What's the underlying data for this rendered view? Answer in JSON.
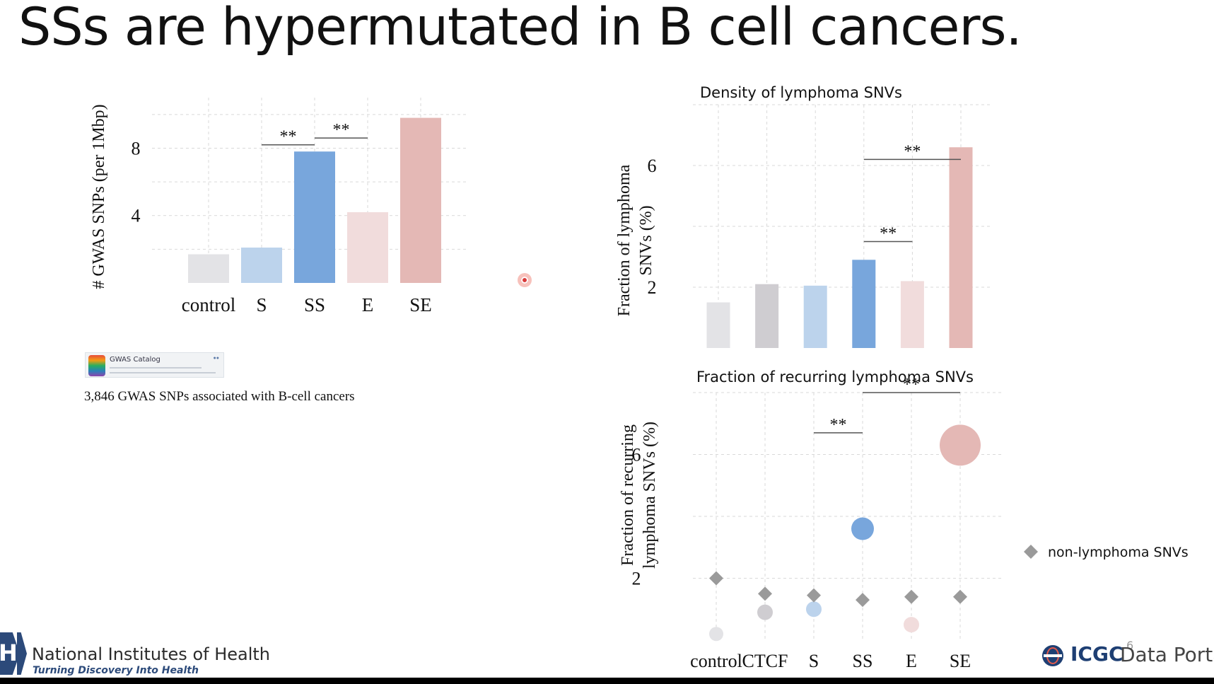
{
  "slide": {
    "title": "SSs are hypermutated in B cell cancers.",
    "caption": "3,846 GWAS SNPs associated with B-cell cancers",
    "gwas_logo_text": "GWAS Catalog",
    "page_number": "6"
  },
  "footer": {
    "nih_name": "National Institutes of Health",
    "nih_tagline": "Turning Discovery Into Health",
    "icgc_brand": "ICGC",
    "icgc_portal": "Data Portal"
  },
  "colors": {
    "control": "#e3e3e6",
    "CTCF": "#cfcdd1",
    "S": "#bcd3ec",
    "SS": "#78a6dc",
    "E": "#f1dcdc",
    "SE": "#e4b8b5",
    "grid": "#d9d9d9",
    "diamond": "#9a9a9a"
  },
  "chart_data": [
    {
      "id": "gwas",
      "type": "bar",
      "title": "",
      "xlabel": "",
      "ylabel": "# GWAS SNPs (per 1Mbp)",
      "categories": [
        "control",
        "S",
        "SS",
        "E",
        "SE"
      ],
      "values": [
        1.7,
        2.1,
        7.8,
        4.2,
        9.8
      ],
      "ylim": [
        0,
        11
      ],
      "yticks": [
        4,
        8
      ],
      "grid": true,
      "significance": [
        {
          "from": "S",
          "to": "SS",
          "label": "**",
          "y": 8.2
        },
        {
          "from": "SS",
          "to": "E",
          "label": "**",
          "y": 8.6
        }
      ]
    },
    {
      "id": "density",
      "type": "bar",
      "title": "Density of lymphoma SNVs",
      "xlabel": "",
      "ylabel": "Fraction of lymphoma SNVs (%)",
      "categories": [
        "control",
        "CTCF",
        "S",
        "SS",
        "E",
        "SE"
      ],
      "values": [
        1.5,
        2.1,
        2.05,
        2.9,
        2.2,
        6.6
      ],
      "ylim": [
        0,
        8
      ],
      "yticks": [
        2,
        6
      ],
      "grid": true,
      "significance": [
        {
          "from": "SS",
          "to": "SE",
          "label": "**",
          "y": 6.2
        },
        {
          "from": "SS",
          "to": "E",
          "label": "**",
          "y": 3.5
        }
      ]
    },
    {
      "id": "recurring",
      "type": "scatter",
      "title": "Fraction of recurring lymphoma SNVs",
      "xlabel": "",
      "ylabel": "Fraction of recurring lymphoma SNVs (%)",
      "categories": [
        "control",
        "CTCF",
        "S",
        "SS",
        "E",
        "SE"
      ],
      "series": [
        {
          "name": "",
          "marker": "circle",
          "values": [
            0.2,
            0.9,
            1.0,
            3.6,
            0.5,
            6.3
          ],
          "sizes": [
            20,
            22,
            22,
            32,
            22,
            58
          ]
        },
        {
          "name": "non-lymphoma SNVs",
          "marker": "diamond",
          "values": [
            2.0,
            1.5,
            1.45,
            1.3,
            1.4,
            1.4
          ]
        }
      ],
      "ylim": [
        0,
        8
      ],
      "yticks": [
        2,
        6
      ],
      "grid": true,
      "legend": "right",
      "significance": [
        {
          "from": "S",
          "to": "SS",
          "label": "**",
          "y": 6.7
        },
        {
          "from": "SS",
          "to": "SE",
          "label": "**",
          "y": 8.0
        }
      ]
    }
  ]
}
